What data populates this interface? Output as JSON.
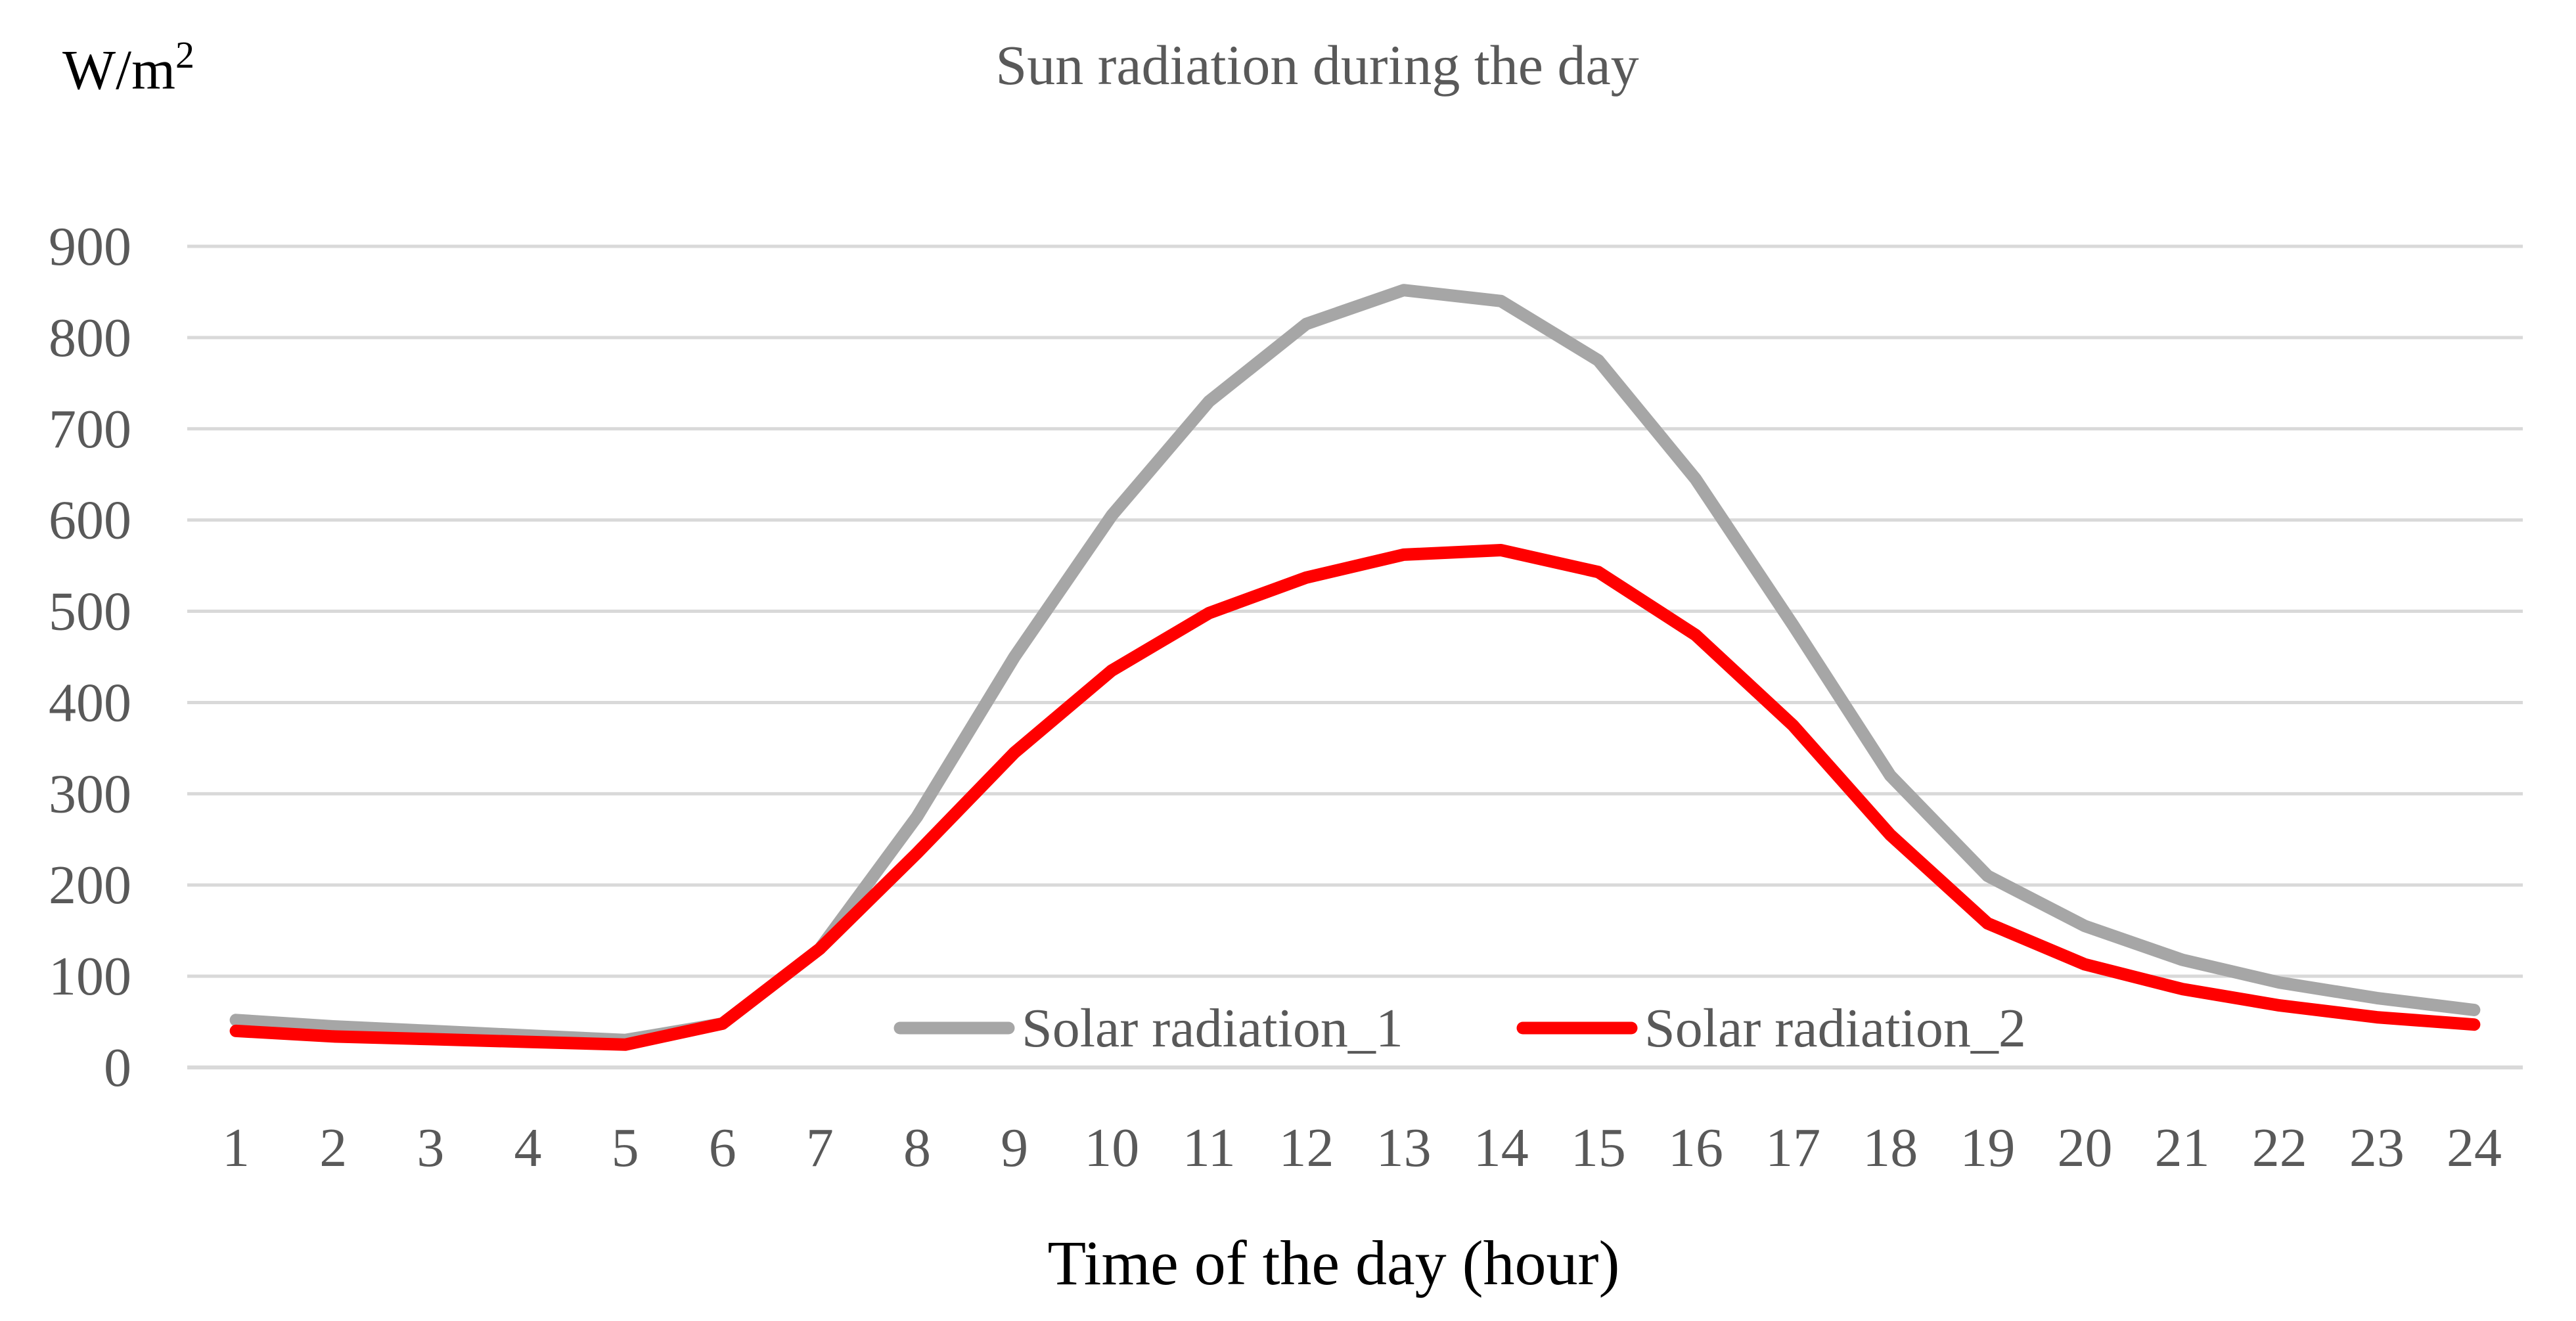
{
  "chart_data": {
    "type": "line",
    "title": "Sun radiation during the day",
    "ylabel": "W/m",
    "ylabel_superscript": "2",
    "xlabel": "Time of the day  (hour)",
    "ylim": [
      0,
      900
    ],
    "yticks": [
      "0",
      "100",
      "200",
      "300",
      "400",
      "500",
      "600",
      "700",
      "800",
      "900"
    ],
    "yticks_values": [
      0,
      100,
      200,
      300,
      400,
      500,
      600,
      700,
      800,
      900
    ],
    "categories": [
      "1",
      "2",
      "3",
      "4",
      "5",
      "6",
      "7",
      "8",
      "9",
      "10",
      "11",
      "12",
      "13",
      "14",
      "15",
      "16",
      "17",
      "18",
      "19",
      "20",
      "21",
      "22",
      "23",
      "24"
    ],
    "grid": true,
    "legend_position": "bottom-center",
    "series": [
      {
        "name": "Solar radiation_1",
        "color": "#a6a6a6",
        "values": [
          52,
          45,
          40,
          35,
          30,
          48,
          130,
          275,
          450,
          605,
          730,
          815,
          852,
          840,
          775,
          645,
          485,
          320,
          210,
          155,
          118,
          93,
          76,
          63
        ]
      },
      {
        "name": "Solar radiation_2",
        "color": "#ff0000",
        "values": [
          40,
          34,
          31,
          28,
          25,
          48,
          130,
          235,
          345,
          435,
          498,
          537,
          562,
          567,
          543,
          474,
          375,
          255,
          158,
          113,
          86,
          68,
          55,
          47
        ]
      }
    ]
  }
}
